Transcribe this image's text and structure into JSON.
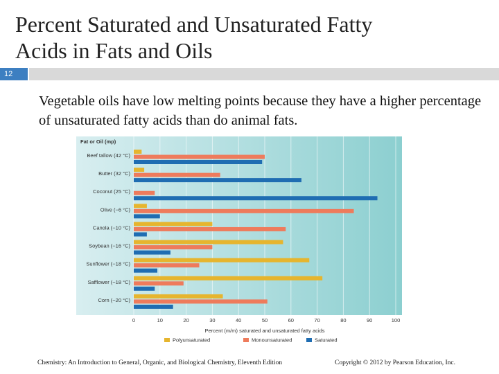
{
  "slide": {
    "title": "Percent Saturated and Unsaturated Fatty Acids in Fats and Oils",
    "number": 12,
    "body": "Vegetable oils have low melting points because they have a higher percentage of unsaturated fatty acids than do animal fats.",
    "footer_left": "Chemistry: An Introduction to General, Organic, and Biological Chemistry, Eleventh Edition",
    "footer_right": "Copyright © 2012 by Pearson Education, Inc."
  },
  "chart_data": {
    "type": "bar",
    "orientation": "horizontal",
    "y_label": "Fat or Oil (mp)",
    "x_label": "Percent (m/m) saturated and unsaturated fatty acids",
    "categories": [
      "Beef tallow (42 °C)",
      "Butter (32 °C)",
      "Coconut (25 °C)",
      "Olive (−6 °C)",
      "Canola (−10 °C)",
      "Soybean (−16 °C)",
      "Sunflower (−18 °C)",
      "Safflower (−18 °C)",
      "Corn (−20 °C)"
    ],
    "series": [
      {
        "name": "Polyunsaturated",
        "color": "#e6b52e",
        "values": [
          3,
          4,
          0,
          5,
          30,
          57,
          67,
          72,
          34
        ]
      },
      {
        "name": "Monounsaturated",
        "color": "#ee7b5c",
        "values": [
          50,
          33,
          8,
          84,
          58,
          30,
          25,
          19,
          51
        ]
      },
      {
        "name": "Saturated",
        "color": "#1f6db2",
        "values": [
          49,
          64,
          93,
          10,
          5,
          14,
          9,
          8,
          15
        ]
      }
    ],
    "xlim": [
      0,
      100
    ],
    "xticks": [
      0,
      10,
      20,
      30,
      40,
      50,
      60,
      70,
      80,
      90,
      100
    ],
    "grid": true,
    "legend": "bottom"
  }
}
